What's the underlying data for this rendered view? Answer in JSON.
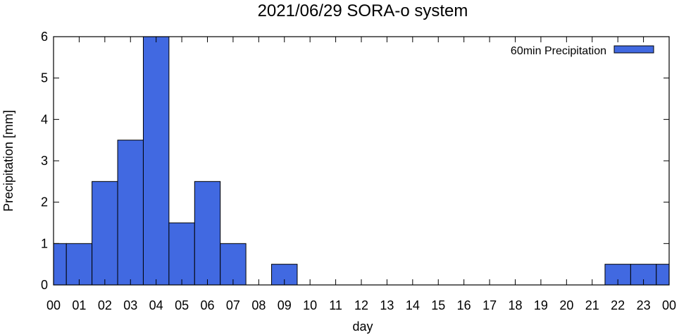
{
  "chart_data": {
    "type": "bar",
    "title": "2021/06/29 SORA-o system",
    "xlabel": "day",
    "ylabel": "Precipitation [mm]",
    "ylim": [
      0,
      6
    ],
    "yticks": [
      0,
      1,
      2,
      3,
      4,
      5,
      6
    ],
    "xlim": [
      0,
      24
    ],
    "xtick_labels": [
      "00",
      "01",
      "02",
      "03",
      "04",
      "05",
      "06",
      "07",
      "08",
      "09",
      "10",
      "11",
      "12",
      "13",
      "14",
      "15",
      "16",
      "17",
      "18",
      "19",
      "20",
      "21",
      "22",
      "23",
      "00"
    ],
    "grid": false,
    "legend_position": "top-right",
    "bar_color": "#4169e1",
    "series": [
      {
        "name": "60min Precipitation",
        "bars": [
          {
            "x0": 0.0,
            "x1": 0.5,
            "value": 1.0
          },
          {
            "x0": 0.5,
            "x1": 1.5,
            "value": 1.0
          },
          {
            "x0": 1.5,
            "x1": 2.5,
            "value": 2.5
          },
          {
            "x0": 2.5,
            "x1": 3.5,
            "value": 3.5
          },
          {
            "x0": 3.5,
            "x1": 4.5,
            "value": 6.0
          },
          {
            "x0": 4.5,
            "x1": 5.5,
            "value": 1.5
          },
          {
            "x0": 5.5,
            "x1": 6.5,
            "value": 2.5
          },
          {
            "x0": 6.5,
            "x1": 7.5,
            "value": 1.0
          },
          {
            "x0": 7.5,
            "x1": 8.5,
            "value": 0.0
          },
          {
            "x0": 8.5,
            "x1": 9.5,
            "value": 0.5
          },
          {
            "x0": 9.5,
            "x1": 10.5,
            "value": 0.0
          },
          {
            "x0": 10.5,
            "x1": 11.5,
            "value": 0.0
          },
          {
            "x0": 11.5,
            "x1": 12.5,
            "value": 0.0
          },
          {
            "x0": 12.5,
            "x1": 13.5,
            "value": 0.0
          },
          {
            "x0": 13.5,
            "x1": 14.5,
            "value": 0.0
          },
          {
            "x0": 14.5,
            "x1": 15.5,
            "value": 0.0
          },
          {
            "x0": 15.5,
            "x1": 16.5,
            "value": 0.0
          },
          {
            "x0": 16.5,
            "x1": 17.5,
            "value": 0.0
          },
          {
            "x0": 17.5,
            "x1": 18.5,
            "value": 0.0
          },
          {
            "x0": 18.5,
            "x1": 19.5,
            "value": 0.0
          },
          {
            "x0": 19.5,
            "x1": 20.5,
            "value": 0.0
          },
          {
            "x0": 20.5,
            "x1": 21.5,
            "value": 0.0
          },
          {
            "x0": 21.5,
            "x1": 22.5,
            "value": 0.5
          },
          {
            "x0": 22.5,
            "x1": 23.5,
            "value": 0.5
          },
          {
            "x0": 23.5,
            "x1": 24.0,
            "value": 0.5
          }
        ]
      }
    ]
  }
}
